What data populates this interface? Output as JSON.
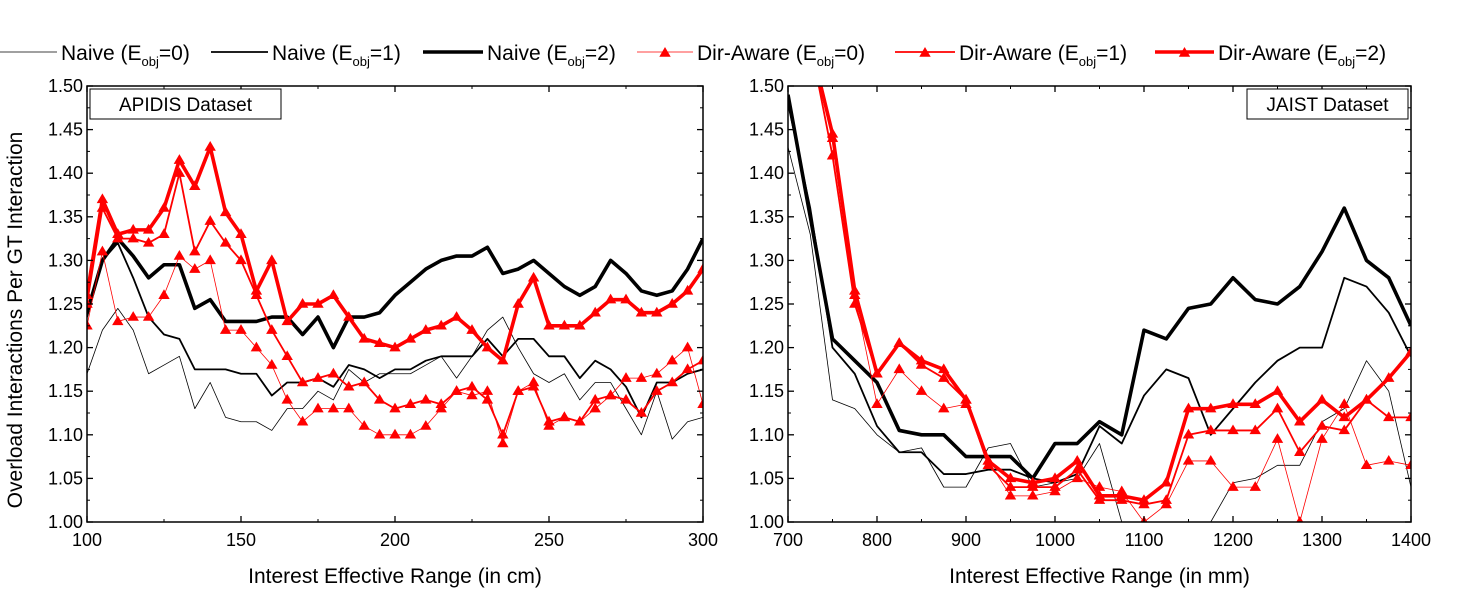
{
  "legend": {
    "items": [
      {
        "prefix": "Naive (E",
        "sub": "obj",
        "suffix": "=0)",
        "color": "#000000",
        "width": 0.8,
        "marker": false
      },
      {
        "prefix": "Naive (E",
        "sub": "obj",
        "suffix": "=1)",
        "color": "#000000",
        "width": 1.8,
        "marker": false
      },
      {
        "prefix": "Naive (E",
        "sub": "obj",
        "suffix": "=2)",
        "color": "#000000",
        "width": 3.6,
        "marker": false
      },
      {
        "prefix": "Dir-Aware (E",
        "sub": "obj",
        "suffix": "=0)",
        "color": "#ff0000",
        "width": 0.8,
        "marker": true
      },
      {
        "prefix": "Dir-Aware (E",
        "sub": "obj",
        "suffix": "=1)",
        "color": "#ff0000",
        "width": 1.8,
        "marker": true
      },
      {
        "prefix": "Dir-Aware (E",
        "sub": "obj",
        "suffix": "=2)",
        "color": "#ff0000",
        "width": 3.6,
        "marker": true
      }
    ]
  },
  "chart_data": [
    {
      "type": "line",
      "panel_label": "APIDIS Dataset",
      "xlabel": "Interest Effective Range (in cm)",
      "ylabel": "Overload Interactions Per GT Interaction",
      "xlim": [
        100,
        300
      ],
      "ylim": [
        1.0,
        1.5
      ],
      "xticks": [
        100,
        150,
        200,
        250,
        300
      ],
      "yticks": [
        "1.00",
        "1.05",
        "1.10",
        "1.15",
        "1.20",
        "1.25",
        "1.30",
        "1.35",
        "1.40",
        "1.45",
        "1.50"
      ],
      "x": [
        100,
        105,
        110,
        115,
        120,
        125,
        130,
        135,
        140,
        145,
        150,
        155,
        160,
        165,
        170,
        175,
        180,
        185,
        190,
        195,
        200,
        205,
        210,
        215,
        220,
        225,
        230,
        235,
        240,
        245,
        250,
        255,
        260,
        265,
        270,
        275,
        280,
        285,
        290,
        295,
        300
      ],
      "series": [
        {
          "name": "Naive (Eobj=0)",
          "values": [
            1.17,
            1.22,
            1.245,
            1.22,
            1.17,
            1.18,
            1.19,
            1.13,
            1.16,
            1.12,
            1.115,
            1.115,
            1.105,
            1.13,
            1.13,
            1.15,
            1.14,
            1.175,
            1.16,
            1.17,
            1.17,
            1.17,
            1.18,
            1.19,
            1.165,
            1.19,
            1.22,
            1.235,
            1.2,
            1.17,
            1.16,
            1.17,
            1.14,
            1.16,
            1.16,
            1.13,
            1.1,
            1.15,
            1.095,
            1.115,
            1.12
          ]
        },
        {
          "name": "Naive (Eobj=1)",
          "values": [
            1.235,
            1.3,
            1.32,
            1.28,
            1.235,
            1.215,
            1.21,
            1.175,
            1.175,
            1.175,
            1.17,
            1.17,
            1.145,
            1.16,
            1.16,
            1.165,
            1.155,
            1.18,
            1.175,
            1.165,
            1.175,
            1.175,
            1.185,
            1.19,
            1.19,
            1.19,
            1.21,
            1.19,
            1.21,
            1.21,
            1.19,
            1.19,
            1.165,
            1.185,
            1.175,
            1.155,
            1.12,
            1.16,
            1.16,
            1.17,
            1.175
          ]
        },
        {
          "name": "Naive (Eobj=2)",
          "values": [
            1.24,
            1.3,
            1.325,
            1.305,
            1.28,
            1.295,
            1.295,
            1.245,
            1.255,
            1.23,
            1.23,
            1.23,
            1.235,
            1.235,
            1.215,
            1.235,
            1.2,
            1.235,
            1.235,
            1.24,
            1.26,
            1.275,
            1.29,
            1.3,
            1.305,
            1.305,
            1.315,
            1.285,
            1.29,
            1.3,
            1.285,
            1.27,
            1.26,
            1.27,
            1.3,
            1.285,
            1.265,
            1.26,
            1.265,
            1.29,
            1.325
          ]
        },
        {
          "name": "Dir-Aware (Eobj=0)",
          "values": [
            1.225,
            1.31,
            1.23,
            1.235,
            1.235,
            1.26,
            1.305,
            1.29,
            1.3,
            1.22,
            1.22,
            1.2,
            1.18,
            1.14,
            1.115,
            1.13,
            1.13,
            1.13,
            1.11,
            1.1,
            1.1,
            1.1,
            1.11,
            1.13,
            1.15,
            1.145,
            1.15,
            1.09,
            1.15,
            1.16,
            1.11,
            1.12,
            1.115,
            1.13,
            1.145,
            1.165,
            1.165,
            1.17,
            1.185,
            1.2,
            1.135
          ]
        },
        {
          "name": "Dir-Aware (Eobj=1)",
          "values": [
            1.25,
            1.36,
            1.325,
            1.325,
            1.32,
            1.33,
            1.4,
            1.31,
            1.345,
            1.32,
            1.3,
            1.26,
            1.22,
            1.19,
            1.16,
            1.165,
            1.17,
            1.155,
            1.16,
            1.14,
            1.13,
            1.135,
            1.14,
            1.135,
            1.15,
            1.155,
            1.14,
            1.1,
            1.15,
            1.155,
            1.115,
            1.12,
            1.115,
            1.14,
            1.145,
            1.14,
            1.125,
            1.15,
            1.16,
            1.175,
            1.185
          ]
        },
        {
          "name": "Dir-Aware (Eobj=2)",
          "values": [
            1.26,
            1.37,
            1.33,
            1.335,
            1.335,
            1.36,
            1.415,
            1.385,
            1.43,
            1.355,
            1.33,
            1.265,
            1.3,
            1.23,
            1.25,
            1.25,
            1.26,
            1.235,
            1.21,
            1.205,
            1.2,
            1.21,
            1.22,
            1.225,
            1.235,
            1.22,
            1.2,
            1.185,
            1.25,
            1.28,
            1.225,
            1.225,
            1.225,
            1.24,
            1.255,
            1.255,
            1.24,
            1.24,
            1.25,
            1.265,
            1.29
          ]
        }
      ]
    },
    {
      "type": "line",
      "panel_label": "JAIST Dataset",
      "xlabel": "Interest Effective Range (in mm)",
      "ylabel": "",
      "xlim": [
        700,
        1400
      ],
      "ylim": [
        1.0,
        1.5
      ],
      "xticks": [
        700,
        800,
        900,
        1000,
        1100,
        1200,
        1300,
        1400
      ],
      "yticks": [
        "1.00",
        "1.05",
        "1.10",
        "1.15",
        "1.20",
        "1.25",
        "1.30",
        "1.35",
        "1.40",
        "1.45",
        "1.50"
      ],
      "x": [
        700,
        725,
        750,
        775,
        800,
        825,
        850,
        875,
        900,
        925,
        950,
        975,
        1000,
        1025,
        1050,
        1075,
        1100,
        1125,
        1150,
        1175,
        1200,
        1225,
        1250,
        1275,
        1300,
        1325,
        1350,
        1375,
        1400
      ],
      "series": [
        {
          "name": "Naive (Eobj=0)",
          "values": [
            1.43,
            1.33,
            1.14,
            1.13,
            1.1,
            1.08,
            1.085,
            1.04,
            1.04,
            1.085,
            1.09,
            1.04,
            1.045,
            1.05,
            1.09,
            1.0,
            1.0,
            1.0,
            0.98,
            1.0,
            1.045,
            1.05,
            1.065,
            1.065,
            1.115,
            1.13,
            1.185,
            1.15,
            1.04
          ]
        },
        {
          "name": "Naive (Eobj=1)",
          "values": [
            1.48,
            1.36,
            1.2,
            1.17,
            1.11,
            1.08,
            1.08,
            1.055,
            1.055,
            1.06,
            1.06,
            1.05,
            1.045,
            1.055,
            1.11,
            1.09,
            1.145,
            1.175,
            1.165,
            1.1,
            1.13,
            1.16,
            1.185,
            1.2,
            1.2,
            1.28,
            1.27,
            1.24,
            1.19
          ]
        },
        {
          "name": "Naive (Eobj=2)",
          "values": [
            1.49,
            1.35,
            1.21,
            1.185,
            1.16,
            1.105,
            1.1,
            1.1,
            1.075,
            1.075,
            1.075,
            1.05,
            1.09,
            1.09,
            1.115,
            1.1,
            1.22,
            1.21,
            1.245,
            1.25,
            1.28,
            1.255,
            1.25,
            1.27,
            1.31,
            1.36,
            1.3,
            1.28,
            1.225
          ]
        },
        {
          "name": "Dir-Aware (Eobj=0)",
          "values": [
            1.52,
            1.55,
            1.44,
            1.26,
            1.135,
            1.175,
            1.15,
            1.13,
            1.135,
            1.07,
            1.03,
            1.03,
            1.035,
            1.05,
            1.04,
            1.035,
            1.0,
            1.02,
            1.07,
            1.07,
            1.04,
            1.04,
            1.095,
            1.0,
            1.095,
            1.135,
            1.065,
            1.07,
            1.065
          ]
        },
        {
          "name": "Dir-Aware (Eobj=1)",
          "values": [
            1.52,
            1.55,
            1.42,
            1.25,
            1.17,
            1.205,
            1.18,
            1.165,
            1.14,
            1.065,
            1.04,
            1.04,
            1.04,
            1.06,
            1.025,
            1.025,
            1.02,
            1.025,
            1.1,
            1.105,
            1.105,
            1.105,
            1.13,
            1.08,
            1.11,
            1.105,
            1.14,
            1.12,
            1.12
          ]
        },
        {
          "name": "Dir-Aware (Eobj=2)",
          "values": [
            1.52,
            1.55,
            1.445,
            1.265,
            1.17,
            1.205,
            1.185,
            1.175,
            1.14,
            1.07,
            1.05,
            1.045,
            1.05,
            1.07,
            1.03,
            1.03,
            1.025,
            1.045,
            1.13,
            1.13,
            1.135,
            1.135,
            1.15,
            1.115,
            1.14,
            1.12,
            1.14,
            1.165,
            1.195
          ]
        }
      ]
    }
  ]
}
